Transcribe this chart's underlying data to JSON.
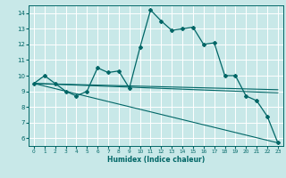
{
  "xlabel": "Humidex (Indice chaleur)",
  "xlim": [
    -0.5,
    23.5
  ],
  "ylim": [
    5.5,
    14.5
  ],
  "yticks": [
    6,
    7,
    8,
    9,
    10,
    11,
    12,
    13,
    14
  ],
  "xticks": [
    0,
    1,
    2,
    3,
    4,
    5,
    6,
    7,
    8,
    9,
    10,
    11,
    12,
    13,
    14,
    15,
    16,
    17,
    18,
    19,
    20,
    21,
    22,
    23
  ],
  "bg_color": "#c8e8e8",
  "line_color": "#006666",
  "grid_color": "#ffffff",
  "main_line": {
    "x": [
      0,
      1,
      2,
      3,
      4,
      5,
      6,
      7,
      8,
      9,
      10,
      11,
      12,
      13,
      14,
      15,
      16,
      17,
      18,
      19,
      20,
      21,
      22,
      23
    ],
    "y": [
      9.5,
      10.0,
      9.5,
      9.0,
      8.7,
      9.0,
      10.5,
      10.2,
      10.3,
      9.2,
      11.8,
      14.2,
      13.5,
      12.9,
      13.0,
      13.1,
      12.0,
      12.1,
      10.0,
      10.0,
      8.7,
      8.4,
      7.4,
      5.7
    ]
  },
  "trend_lines": [
    {
      "x": [
        0,
        23
      ],
      "y": [
        9.5,
        9.1
      ]
    },
    {
      "x": [
        0,
        23
      ],
      "y": [
        9.5,
        8.9
      ]
    },
    {
      "x": [
        0,
        23
      ],
      "y": [
        9.5,
        5.7
      ]
    }
  ]
}
